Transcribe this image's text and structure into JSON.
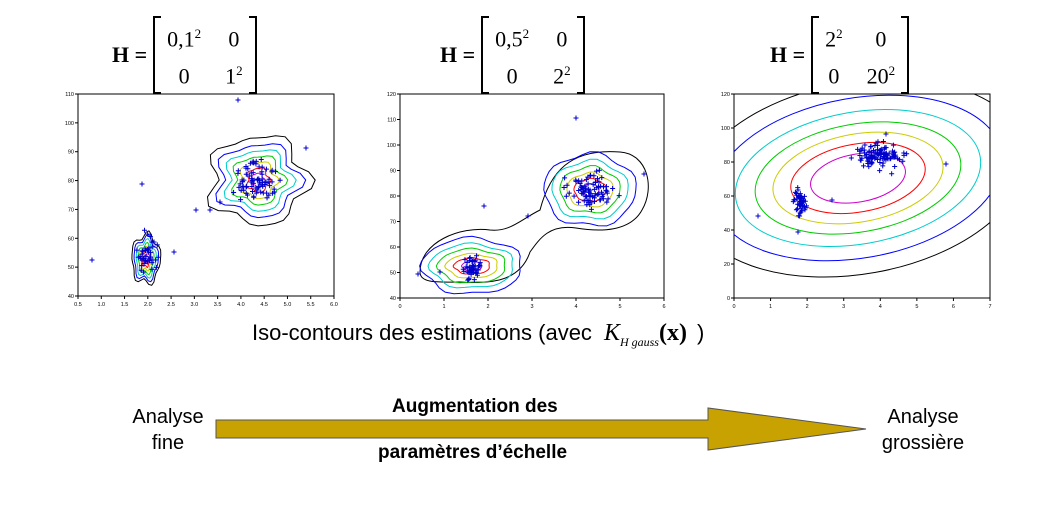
{
  "matrices": [
    {
      "label": "H =",
      "cells": [
        {
          "base": "0,1",
          "exp": "2"
        },
        {
          "base": "0",
          "exp": ""
        },
        {
          "base": "0",
          "exp": ""
        },
        {
          "base": "1",
          "exp": "2"
        }
      ]
    },
    {
      "label": "H =",
      "cells": [
        {
          "base": "0,5",
          "exp": "2"
        },
        {
          "base": "0",
          "exp": ""
        },
        {
          "base": "0",
          "exp": ""
        },
        {
          "base": "2",
          "exp": "2"
        }
      ]
    },
    {
      "label": "H =",
      "cells": [
        {
          "base": "2",
          "exp": "2"
        },
        {
          "base": "0",
          "exp": ""
        },
        {
          "base": "0",
          "exp": ""
        },
        {
          "base": "20",
          "exp": "2"
        }
      ]
    }
  ],
  "caption": {
    "text": "Iso-contours des estimations (avec",
    "kernel": "K",
    "kernel_sub": "H gauss",
    "kernel_arg": "(x)",
    "close": ")"
  },
  "left_label": {
    "line1": "Analyse",
    "line2": "fine"
  },
  "right_label": {
    "line1": "Analyse",
    "line2": "grossière"
  },
  "arrow": {
    "top_text": "Augmentation des",
    "bottom_text": "paramètres d’échelle",
    "color": "#c8a200"
  },
  "plots": [
    {
      "xticks": [
        "0.5",
        "1.0",
        "1.5",
        "2.0",
        "2.5",
        "3.0",
        "3.5",
        "4.0",
        "4.5",
        "5.0",
        "5.5",
        "6.0"
      ],
      "yticks": [
        "40",
        "50",
        "60",
        "70",
        "80",
        "90",
        "100",
        "110"
      ]
    },
    {
      "xticks": [
        "0",
        "1",
        "2",
        "3",
        "4",
        "5",
        "6"
      ],
      "yticks": [
        "40",
        "50",
        "60",
        "70",
        "80",
        "90",
        "100",
        "110",
        "120"
      ]
    },
    {
      "xticks": [
        "0",
        "1",
        "2",
        "3",
        "4",
        "5",
        "6",
        "7"
      ],
      "yticks": [
        "0",
        "20",
        "40",
        "60",
        "80",
        "100",
        "120"
      ]
    }
  ],
  "colors": {
    "points": "#0000cc",
    "contours": [
      "#000000",
      "#0000ff",
      "#00cccc",
      "#00cc00",
      "#cccc00",
      "#ff0000",
      "#cc00cc"
    ]
  }
}
